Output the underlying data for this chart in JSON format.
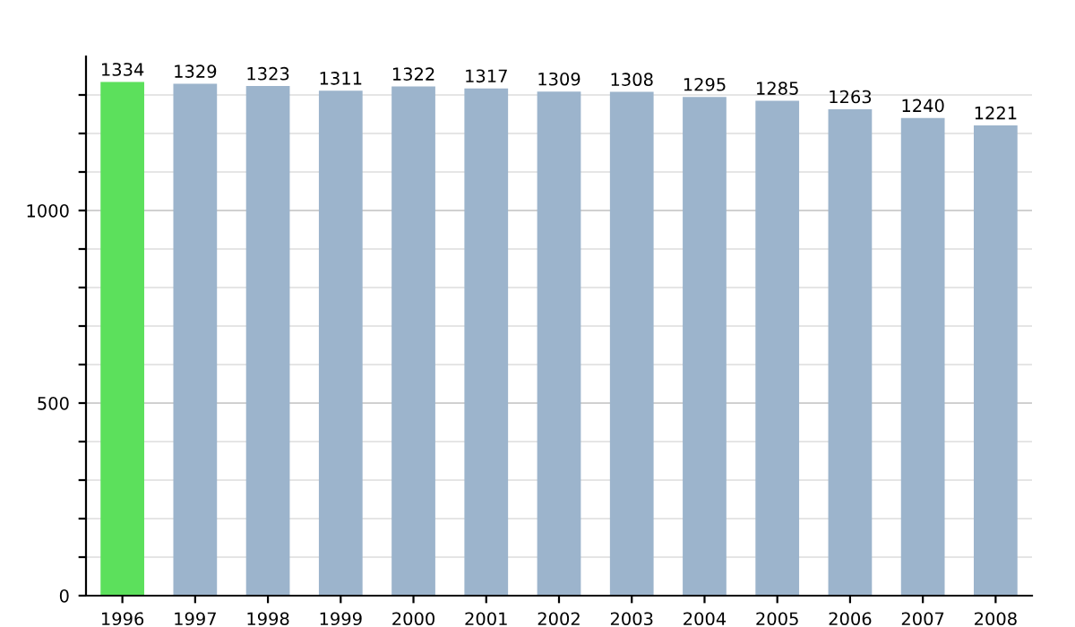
{
  "chart_data": {
    "type": "bar",
    "categories": [
      "1996",
      "1997",
      "1998",
      "1999",
      "2000",
      "2001",
      "2002",
      "2003",
      "2004",
      "2005",
      "2006",
      "2007",
      "2008"
    ],
    "values": [
      1334,
      1329,
      1323,
      1311,
      1322,
      1317,
      1309,
      1308,
      1295,
      1285,
      1263,
      1240,
      1221
    ],
    "colors": [
      "#5ce05c",
      "#9cb4cc",
      "#9cb4cc",
      "#9cb4cc",
      "#9cb4cc",
      "#9cb4cc",
      "#9cb4cc",
      "#9cb4cc",
      "#9cb4cc",
      "#9cb4cc",
      "#9cb4cc",
      "#9cb4cc",
      "#9cb4cc"
    ],
    "ylim": [
      0,
      1400
    ],
    "yticks": [
      0,
      {
        "value": 100,
        "label": null
      },
      {
        "value": 200,
        "label": null
      },
      {
        "value": 300,
        "label": null
      },
      {
        "value": 400,
        "label": null
      },
      500,
      {
        "value": 600,
        "label": null
      },
      {
        "value": 700,
        "label": null
      },
      {
        "value": 800,
        "label": null
      },
      {
        "value": 900,
        "label": null
      },
      1000,
      {
        "value": 1100,
        "label": null
      },
      {
        "value": 1200,
        "label": null
      },
      {
        "value": 1300,
        "label": null
      }
    ],
    "grid": "y",
    "data_labels": true
  }
}
